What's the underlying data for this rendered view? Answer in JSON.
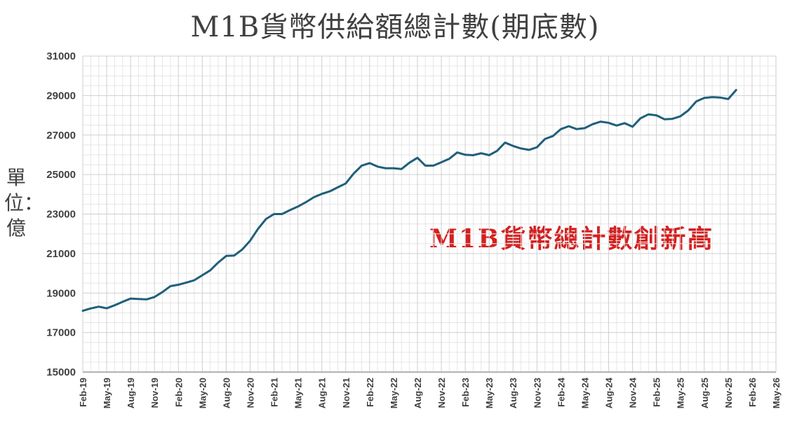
{
  "chart_data": {
    "type": "line",
    "title": "M1B貨幣供給額總計數(期底數)",
    "ylabel": "單位：億",
    "annotation": "M1B貨幣總計數創新高",
    "ylim": [
      15000,
      31000
    ],
    "yticks": [
      15000,
      17000,
      19000,
      21000,
      23000,
      25000,
      27000,
      29000,
      31000
    ],
    "ytick_labels": [
      "15000",
      "17000",
      "19000",
      "21000",
      "23000",
      "25000",
      "27000",
      "29000",
      "31000"
    ],
    "xlim": [
      "2019-02",
      "2026-05"
    ],
    "xtick_labels": [
      "Feb-19",
      "May-19",
      "Aug-19",
      "Nov-19",
      "Feb-20",
      "May-20",
      "Aug-20",
      "Nov-20",
      "Feb-21",
      "May-21",
      "Aug-21",
      "Nov-21",
      "Feb-22",
      "May-22",
      "Aug-22",
      "Nov-22",
      "Feb-23",
      "May-23",
      "Aug-23",
      "Nov-23",
      "Feb-24",
      "May-24",
      "Aug-24",
      "Nov-24",
      "Feb-25",
      "May-25",
      "Aug-25",
      "Nov-25",
      "Feb-26",
      "May-26"
    ],
    "grid": true,
    "line_color": "#1f5f7a",
    "series": [
      {
        "x": [
          "2019-02",
          "2019-03",
          "2019-04",
          "2019-05",
          "2019-06",
          "2019-07",
          "2019-08",
          "2019-09",
          "2019-10",
          "2019-11",
          "2019-12",
          "2020-01",
          "2020-02",
          "2020-03",
          "2020-04",
          "2020-05",
          "2020-06",
          "2020-07",
          "2020-08",
          "2020-09",
          "2020-10",
          "2020-11",
          "2020-12",
          "2021-01",
          "2021-02",
          "2021-03",
          "2021-04",
          "2021-05",
          "2021-06",
          "2021-07",
          "2021-08",
          "2021-09",
          "2021-10",
          "2021-11",
          "2021-12",
          "2022-01",
          "2022-02",
          "2022-03",
          "2022-04",
          "2022-05",
          "2022-06",
          "2022-07",
          "2022-08",
          "2022-09",
          "2022-10",
          "2022-11",
          "2022-12",
          "2023-01",
          "2023-02",
          "2023-03",
          "2023-04",
          "2023-05",
          "2023-06",
          "2023-07",
          "2023-08",
          "2023-09",
          "2023-10",
          "2023-11",
          "2023-12",
          "2024-01",
          "2024-02",
          "2024-03",
          "2024-04",
          "2024-05",
          "2024-06",
          "2024-07",
          "2024-08",
          "2024-09",
          "2024-10",
          "2024-11",
          "2024-12",
          "2025-01",
          "2025-02",
          "2025-03",
          "2025-04",
          "2025-05",
          "2025-06",
          "2025-07",
          "2025-08",
          "2025-09",
          "2025-10",
          "2025-11",
          "2025-12"
        ],
        "values": [
          18100,
          18220,
          18310,
          18230,
          18380,
          18560,
          18720,
          18700,
          18680,
          18800,
          19050,
          19350,
          19420,
          19530,
          19650,
          19900,
          20150,
          20550,
          20880,
          20900,
          21200,
          21650,
          22250,
          22750,
          23000,
          23000,
          23200,
          23380,
          23600,
          23850,
          24020,
          24150,
          24350,
          24550,
          25050,
          25450,
          25580,
          25400,
          25320,
          25320,
          25280,
          25600,
          25850,
          25450,
          25450,
          25620,
          25800,
          26120,
          26000,
          25980,
          26080,
          25980,
          26200,
          26620,
          26450,
          26320,
          26250,
          26380,
          26800,
          26950,
          27300,
          27450,
          27300,
          27350,
          27550,
          27680,
          27620,
          27480,
          27600,
          27420,
          27850,
          28050,
          28000,
          27800,
          27820,
          27950,
          28250,
          28700,
          28880,
          28920,
          28900,
          28820,
          29280
        ]
      }
    ]
  }
}
